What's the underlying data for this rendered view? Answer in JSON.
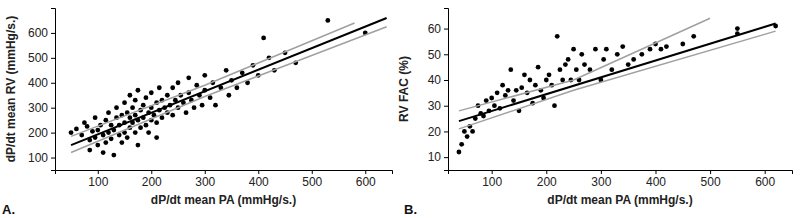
{
  "chart_data": [
    {
      "type": "scatter",
      "x_label": "dP/dt mean PA (mmHg/s.)",
      "y_label": "dP/dt mean RV (mmHg/s.)",
      "annotations": [
        "A."
      ],
      "xlim": [
        20,
        650
      ],
      "xticks": [
        100,
        200,
        300,
        400,
        500,
        600
      ],
      "ylim": [
        50,
        700
      ],
      "yticks": [
        100,
        200,
        300,
        400,
        500,
        600
      ],
      "series": [
        {
          "type": "scatter",
          "color": "#000000",
          "marker": "circle",
          "x": [
            50,
            60,
            70,
            75,
            80,
            85,
            85,
            90,
            95,
            95,
            100,
            100,
            105,
            110,
            110,
            115,
            115,
            120,
            120,
            125,
            125,
            130,
            130,
            135,
            135,
            140,
            140,
            145,
            145,
            150,
            150,
            150,
            155,
            155,
            160,
            160,
            160,
            165,
            165,
            170,
            170,
            170,
            175,
            175,
            175,
            180,
            180,
            185,
            185,
            190,
            190,
            195,
            195,
            200,
            200,
            200,
            205,
            210,
            210,
            210,
            215,
            215,
            220,
            220,
            225,
            230,
            230,
            235,
            240,
            240,
            245,
            250,
            250,
            255,
            260,
            265,
            270,
            270,
            275,
            280,
            285,
            290,
            295,
            300,
            300,
            310,
            315,
            320,
            330,
            340,
            345,
            350,
            360,
            370,
            380,
            390,
            400,
            410,
            420,
            430,
            450,
            470,
            530,
            600
          ],
          "values": [
            200,
            215,
            190,
            240,
            225,
            170,
            130,
            205,
            180,
            260,
            210,
            150,
            230,
            190,
            120,
            250,
            160,
            200,
            280,
            175,
            230,
            210,
            110,
            260,
            300,
            190,
            230,
            270,
            160,
            240,
            320,
            200,
            280,
            180,
            350,
            260,
            220,
            300,
            240,
            200,
            330,
            270,
            250,
            370,
            150,
            290,
            220,
            310,
            260,
            230,
            340,
            280,
            200,
            300,
            250,
            360,
            270,
            320,
            240,
            180,
            290,
            380,
            260,
            330,
            300,
            280,
            350,
            310,
            270,
            380,
            330,
            300,
            400,
            350,
            320,
            280,
            360,
            420,
            330,
            300,
            390,
            350,
            310,
            370,
            430,
            340,
            400,
            310,
            380,
            450,
            350,
            410,
            380,
            440,
            400,
            470,
            430,
            580,
            500,
            450,
            520,
            480,
            650,
            600
          ]
        },
        {
          "type": "line",
          "color": "#000000",
          "line_style": "solid",
          "x": [
            50,
            640
          ],
          "values": [
            150,
            660
          ]
        },
        {
          "type": "line",
          "color": "#a0a0a0",
          "line_style": "solid",
          "x": [
            50,
            300,
            580
          ],
          "values": [
            185,
            390,
            640
          ]
        },
        {
          "type": "line",
          "color": "#a0a0a0",
          "line_style": "solid",
          "x": [
            50,
            300,
            640
          ],
          "values": [
            120,
            345,
            625
          ]
        }
      ]
    },
    {
      "type": "scatter",
      "x_label": "dP/dt mean PA (mmHg/s.)",
      "y_label": "RV FAC (%)",
      "annotations": [
        "B."
      ],
      "xlim": [
        20,
        650
      ],
      "xticks": [
        100,
        200,
        300,
        400,
        500,
        600
      ],
      "ylim": [
        5,
        68
      ],
      "yticks": [
        10,
        20,
        30,
        40,
        50,
        60
      ],
      "series": [
        {
          "type": "scatter",
          "color": "#000000",
          "marker": "circle",
          "x": [
            40,
            45,
            50,
            55,
            60,
            65,
            70,
            75,
            80,
            85,
            90,
            95,
            100,
            105,
            110,
            115,
            120,
            125,
            130,
            135,
            140,
            145,
            150,
            155,
            160,
            165,
            170,
            175,
            180,
            185,
            190,
            195,
            200,
            205,
            210,
            215,
            220,
            225,
            230,
            235,
            240,
            245,
            250,
            255,
            260,
            265,
            270,
            280,
            290,
            300,
            305,
            310,
            320,
            330,
            340,
            350,
            360,
            375,
            390,
            400,
            410,
            420,
            450,
            470,
            550,
            550,
            620
          ],
          "values": [
            12,
            15,
            20,
            18,
            22,
            20,
            25,
            30,
            27,
            26,
            32,
            28,
            33,
            30,
            35,
            29,
            38,
            34,
            36,
            44,
            32,
            36,
            28,
            37,
            42,
            35,
            40,
            31,
            38,
            45,
            36,
            33,
            40,
            42,
            38,
            30,
            57,
            44,
            40,
            46,
            48,
            40,
            52,
            44,
            40,
            50,
            46,
            44,
            52,
            40,
            48,
            52,
            44,
            50,
            53,
            46,
            48,
            50,
            52,
            54,
            52,
            53,
            54,
            57,
            58,
            60,
            61
          ]
        },
        {
          "type": "line",
          "color": "#000000",
          "line_style": "solid",
          "x": [
            40,
            620
          ],
          "values": [
            24,
            62
          ]
        },
        {
          "type": "line",
          "color": "#a0a0a0",
          "line_style": "solid",
          "x": [
            40,
            250,
            500
          ],
          "values": [
            28,
            40,
            64
          ]
        },
        {
          "type": "line",
          "color": "#a0a0a0",
          "line_style": "solid",
          "x": [
            40,
            250,
            620
          ],
          "values": [
            21,
            36,
            59
          ]
        }
      ]
    }
  ]
}
